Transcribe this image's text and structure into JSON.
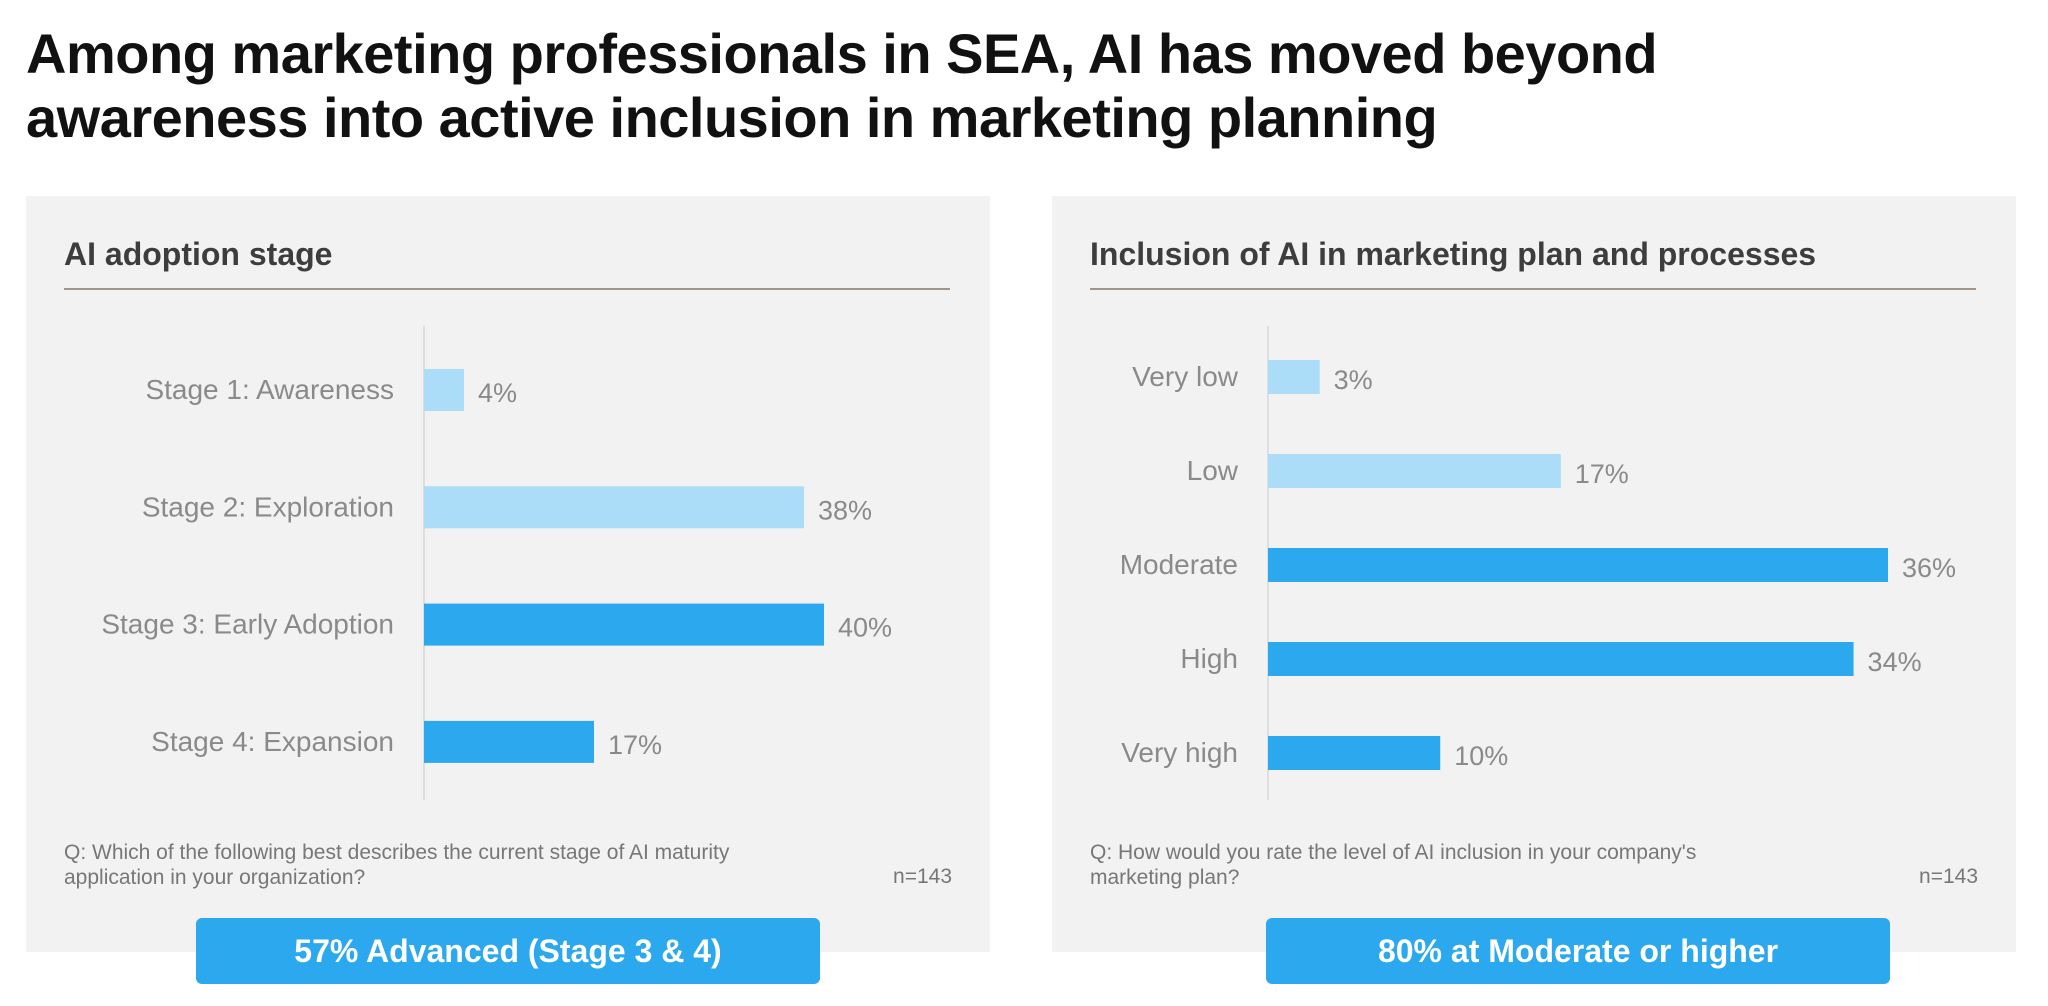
{
  "title": "Among marketing professionals in SEA, AI has moved beyond awareness into active inclusion in marketing planning",
  "colors": {
    "light_bar": "#abdcf8",
    "dark_bar": "#2ba8ee",
    "panel_bg": "#f2f2f2",
    "callout_bg": "#2ba8ee"
  },
  "left_panel": {
    "title": "AI adoption stage",
    "question": "Q: Which of the following best describes the current stage of AI maturity application in your organization?",
    "n": "n=143",
    "callout": "57% Advanced (Stage 3 & 4)"
  },
  "right_panel": {
    "title": "Inclusion of AI in marketing plan and processes",
    "question": "Q: How would you rate the level of AI inclusion in your company's marketing plan?",
    "n": "n=143",
    "callout": "80% at Moderate or higher"
  },
  "chart_data": [
    {
      "type": "bar",
      "orientation": "horizontal",
      "title": "AI adoption stage",
      "categories": [
        "Stage 1: Awareness",
        "Stage 2: Exploration",
        "Stage 3: Early Adoption",
        "Stage 4: Expansion"
      ],
      "values": [
        4,
        38,
        40,
        17
      ],
      "value_labels": [
        "4%",
        "38%",
        "40%",
        "17%"
      ],
      "bar_shade": [
        "light",
        "light",
        "dark",
        "dark"
      ],
      "xlim": [
        0,
        40
      ],
      "grid": false
    },
    {
      "type": "bar",
      "orientation": "horizontal",
      "title": "Inclusion of AI in marketing plan and processes",
      "categories": [
        "Very low",
        "Low",
        "Moderate",
        "High",
        "Very high"
      ],
      "values": [
        3,
        17,
        36,
        34,
        10
      ],
      "value_labels": [
        "3%",
        "17%",
        "36%",
        "34%",
        "10%"
      ],
      "bar_shade": [
        "light",
        "light",
        "dark",
        "dark",
        "dark"
      ],
      "xlim": [
        0,
        36
      ],
      "grid": false
    }
  ]
}
